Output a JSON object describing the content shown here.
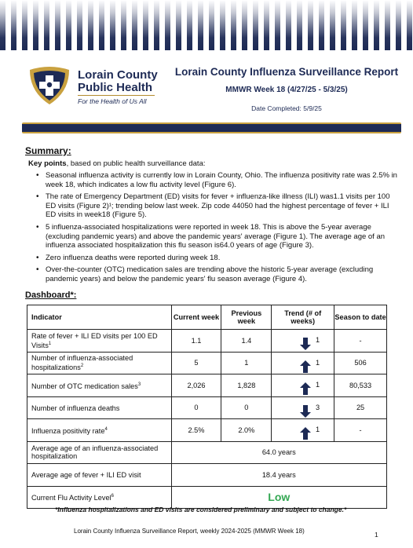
{
  "header": {
    "logo_name_line1": "Lorain County",
    "logo_name_line2": "Public Health",
    "logo_tagline": "For the Health of Us All",
    "title": "Lorain County Influenza Surveillance Report",
    "subtitle": "MMWR Week 18 (4/27/25 - 5/3/25)",
    "completed": "Date Completed: 5/9/25"
  },
  "summary": {
    "heading": "Summary:",
    "keypoints_bold": "Key points",
    "keypoints_rest": ", based on public health surveillance data:",
    "points": [
      "Seasonal influenza activity is currently low in Lorain County, Ohio. The influenza positivity rate was 2.5% in week 18, which indicates a low flu activity level (Figure 6).",
      "The rate of Emergency Department (ED) visits for fever + influenza-like illness (ILI) was1.1 visits per 100 ED visits (Figure 2)¹; trending below last week. Zip code 44050 had the highest percentage of fever + ILI ED visits in week18 (Figure 5).",
      "5 influenza-associated hospitalizations were reported in week 18. This is above the 5-year average (excluding pandemic years) and above the pandemic years' average (Figure 1). The average age of an influenza associated hospitalization this flu season is64.0 years of age (Figure 3).",
      "Zero influenza deaths were reported during week 18.",
      "Over-the-counter (OTC) medication sales are trending above the historic 5-year average (excluding pandemic years) and below the pandemic years' flu season average (Figure 4)."
    ]
  },
  "dashboard": {
    "heading": "Dashboard*:",
    "headers": {
      "indicator": "Indicator",
      "current": "Current week",
      "previous": "Previous week",
      "trend": "Trend (# of weeks)",
      "season": "Season to date"
    },
    "rows": [
      {
        "indicator": "Rate of fever + ILI ED visits per 100 ED Visits",
        "sup": "1",
        "current": "1.1",
        "previous": "1.4",
        "trend_dir": "down",
        "trend_weeks": "1",
        "season": "-"
      },
      {
        "indicator": "Number of influenza-associated hospitalizations",
        "sup": "2",
        "current": "5",
        "previous": "1",
        "trend_dir": "up",
        "trend_weeks": "1",
        "season": "506"
      },
      {
        "indicator": "Number of OTC medication sales",
        "sup": "3",
        "current": "2,026",
        "previous": "1,828",
        "trend_dir": "up",
        "trend_weeks": "1",
        "season": "80,533"
      },
      {
        "indicator": "Number of influenza deaths",
        "sup": "",
        "current": "0",
        "previous": "0",
        "trend_dir": "down",
        "trend_weeks": "3",
        "season": "25"
      },
      {
        "indicator": "Influenza positivity rate",
        "sup": "4",
        "current": "2.5%",
        "previous": "2.0%",
        "trend_dir": "up",
        "trend_weeks": "1",
        "season": "-"
      }
    ],
    "avg_hosp": {
      "indicator": "Average age of an influenza-associated hospitalization",
      "value": "64.0 years"
    },
    "avg_ed": {
      "indicator": "Average age of fever + ILI ED visit",
      "value": "18.4 years"
    },
    "flu_level": {
      "indicator": "Current Flu Activity Level",
      "sup": "6",
      "value": "Low"
    }
  },
  "note": "*Influenza hospitalizations and ED visits are considered preliminary and subject to change.*",
  "footer": {
    "text": "Lorain County Influenza Surveillance Report, weekly 2024-2025  (MMWR Week 18)",
    "page": "1"
  },
  "colors": {
    "navy": "#1d2a55",
    "gold": "#c9a13f",
    "low_green": "#34a853"
  }
}
